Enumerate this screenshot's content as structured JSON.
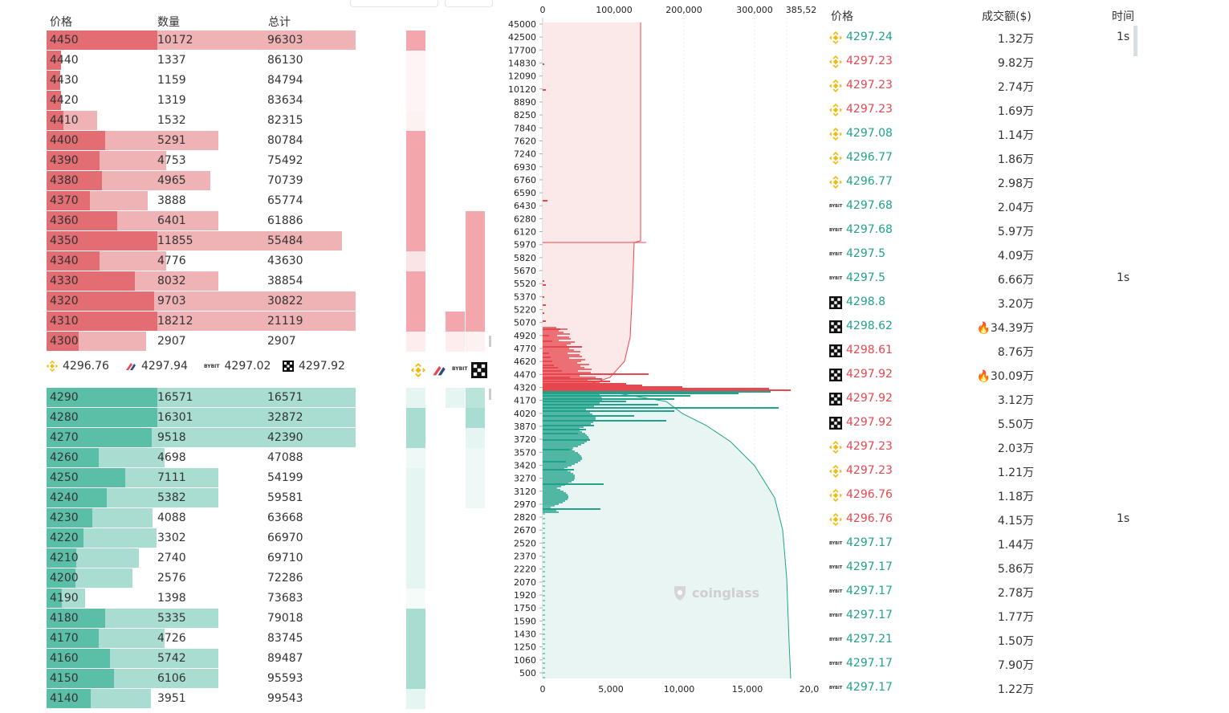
{
  "orderbook": {
    "headers": {
      "price": "价格",
      "qty": "数量",
      "total": "总计"
    },
    "asks": [
      {
        "price": "4450",
        "qty": "10172",
        "total": "96303",
        "f1": 1.0,
        "f2": 1.0
      },
      {
        "price": "4440",
        "qty": "1337",
        "total": "86130",
        "f1": 0.13,
        "f2": 0.0
      },
      {
        "price": "4430",
        "qty": "1159",
        "total": "84794",
        "f1": 0.12,
        "f2": 0.0
      },
      {
        "price": "4420",
        "qty": "1319",
        "total": "83634",
        "f1": 0.13,
        "f2": 0.0
      },
      {
        "price": "4410",
        "qty": "1532",
        "total": "82315",
        "f1": 0.15,
        "f2": 0.22
      },
      {
        "price": "4400",
        "qty": "5291",
        "total": "80784",
        "f1": 0.53,
        "f2": 1.0
      },
      {
        "price": "4390",
        "qty": "4753",
        "total": "75492",
        "f1": 0.48,
        "f2": 0.56
      },
      {
        "price": "4380",
        "qty": "4965",
        "total": "70739",
        "f1": 0.5,
        "f2": 0.93
      },
      {
        "price": "4370",
        "qty": "3888",
        "total": "65774",
        "f1": 0.39,
        "f2": 0.45
      },
      {
        "price": "4360",
        "qty": "6401",
        "total": "61886",
        "f1": 0.64,
        "f2": 1.0
      },
      {
        "price": "4350",
        "qty": "11855",
        "total": "55484",
        "f1": 1.0,
        "f2": 0.93
      },
      {
        "price": "4340",
        "qty": "4776",
        "total": "43630",
        "f1": 0.48,
        "f2": 0.56
      },
      {
        "price": "4330",
        "qty": "8032",
        "total": "38854",
        "f1": 0.8,
        "f2": 1.0
      },
      {
        "price": "4320",
        "qty": "9703",
        "total": "30822",
        "f1": 0.97,
        "f2": 1.0
      },
      {
        "price": "4310",
        "qty": "18212",
        "total": "21119",
        "f1": 1.0,
        "f2": 1.0
      },
      {
        "price": "4300",
        "qty": "2907",
        "total": "2907",
        "f1": 0.29,
        "f2": 0.48
      }
    ],
    "bids": [
      {
        "price": "4290",
        "qty": "16571",
        "total": "16571",
        "f1": 1.0,
        "f2": 1.0
      },
      {
        "price": "4280",
        "qty": "16301",
        "total": "32872",
        "f1": 1.0,
        "f2": 1.0
      },
      {
        "price": "4270",
        "qty": "9518",
        "total": "42390",
        "f1": 0.95,
        "f2": 1.0
      },
      {
        "price": "4260",
        "qty": "4698",
        "total": "47088",
        "f1": 0.47,
        "f2": 0.55
      },
      {
        "price": "4250",
        "qty": "7111",
        "total": "54199",
        "f1": 0.71,
        "f2": 1.0
      },
      {
        "price": "4240",
        "qty": "5382",
        "total": "59581",
        "f1": 0.54,
        "f2": 1.0
      },
      {
        "price": "4230",
        "qty": "4088",
        "total": "63668",
        "f1": 0.41,
        "f2": 0.48
      },
      {
        "price": "4220",
        "qty": "3302",
        "total": "66970",
        "f1": 0.33,
        "f2": 0.54
      },
      {
        "price": "4210",
        "qty": "2740",
        "total": "69710",
        "f1": 0.27,
        "f2": 0.44
      },
      {
        "price": "4200",
        "qty": "2576",
        "total": "72286",
        "f1": 0.26,
        "f2": 0.4
      },
      {
        "price": "4190",
        "qty": "1398",
        "total": "73683",
        "f1": 0.14,
        "f2": 0.15
      },
      {
        "price": "4180",
        "qty": "5335",
        "total": "79018",
        "f1": 0.53,
        "f2": 1.0
      },
      {
        "price": "4170",
        "qty": "4726",
        "total": "83745",
        "f1": 0.47,
        "f2": 0.55
      },
      {
        "price": "4160",
        "qty": "5742",
        "total": "89487",
        "f1": 0.57,
        "f2": 1.0
      },
      {
        "price": "4150",
        "qty": "6106",
        "total": "95593",
        "f1": 0.61,
        "f2": 1.0
      },
      {
        "price": "4140",
        "qty": "3951",
        "total": "99543",
        "f1": 0.4,
        "f2": 0.47
      }
    ],
    "exchange_prices": [
      {
        "icon": "binance-icon",
        "price": "4296.76"
      },
      {
        "icon": "huobi-icon",
        "price": "4297.94"
      },
      {
        "icon": "bybit-icon",
        "price": "4297.02"
      },
      {
        "icon": "okx-icon",
        "price": "4297.92"
      }
    ],
    "mini_asks_a": [
      1.0,
      0.1,
      0.05,
      0.1,
      0.15,
      1.0,
      1.0,
      1.0,
      1.0,
      1.0,
      1.0,
      0.3,
      1.0,
      1.0,
      1.0,
      0.2
    ],
    "mini_asks_b": [
      0,
      0,
      0,
      0,
      0,
      0,
      0,
      0,
      0,
      0,
      0,
      0,
      0,
      0,
      1.0,
      0.2
    ],
    "mini_asks_c": [
      0,
      0,
      0,
      0,
      0,
      0,
      0,
      0,
      0,
      1.0,
      1.0,
      1.0,
      1.0,
      1.0,
      1.0,
      0.15
    ],
    "mini_bids_a": [
      0.3,
      1.0,
      1.0,
      0.2,
      0.3,
      0.3,
      0.3,
      0.3,
      0.3,
      0.3,
      0.1,
      1.0,
      1.0,
      1.0,
      1.0,
      0.3
    ],
    "mini_bids_b": [
      0.3,
      0,
      0,
      0,
      0,
      0,
      0,
      0,
      0,
      0,
      0,
      0,
      0,
      0,
      0,
      0
    ],
    "mini_bids_c": [
      0.8,
      1.0,
      0.3,
      0.2,
      0.2,
      0.2,
      0,
      0,
      0,
      0,
      0,
      0,
      0,
      0,
      0,
      0
    ]
  },
  "depth_chart": {
    "top_axis": [
      "0",
      "100,000",
      "200,000",
      "300,000",
      "385,52"
    ],
    "bottom_axis": [
      "0",
      "5,000",
      "10,000",
      "15,000",
      "20,0"
    ],
    "price_ticks": [
      "45000",
      "42500",
      "17700",
      "14830",
      "12090",
      "10120",
      "8890",
      "8250",
      "7840",
      "7620",
      "7240",
      "6930",
      "6760",
      "6590",
      "6430",
      "6280",
      "6120",
      "5970",
      "5820",
      "5670",
      "5520",
      "5370",
      "5220",
      "5070",
      "4920",
      "4770",
      "4620",
      "4470",
      "4320",
      "4170",
      "4020",
      "3870",
      "3720",
      "3570",
      "3420",
      "3270",
      "3120",
      "2970",
      "2820",
      "2670",
      "2520",
      "2370",
      "2220",
      "2070",
      "1920",
      "1750",
      "1590",
      "1430",
      "1250",
      "1060",
      "500"
    ],
    "watermark": "coinglass",
    "ask_color": "#e8474f",
    "bid_color": "#21a28a"
  },
  "trades": {
    "headers": {
      "price": "价格",
      "amount": "成交额($)",
      "time": "时间"
    },
    "rows": [
      {
        "ex": "binance-icon",
        "price": "4297.24",
        "side": "up",
        "amount": "1.32万",
        "time": "1s",
        "fire": false
      },
      {
        "ex": "binance-icon",
        "price": "4297.23",
        "side": "down",
        "amount": "9.82万",
        "time": "",
        "fire": false
      },
      {
        "ex": "binance-icon",
        "price": "4297.23",
        "side": "down",
        "amount": "2.74万",
        "time": "",
        "fire": false
      },
      {
        "ex": "binance-icon",
        "price": "4297.23",
        "side": "down",
        "amount": "1.69万",
        "time": "",
        "fire": false
      },
      {
        "ex": "binance-icon",
        "price": "4297.08",
        "side": "up",
        "amount": "1.14万",
        "time": "",
        "fire": false
      },
      {
        "ex": "binance-icon",
        "price": "4296.77",
        "side": "up",
        "amount": "1.86万",
        "time": "",
        "fire": false
      },
      {
        "ex": "binance-icon",
        "price": "4296.77",
        "side": "up",
        "amount": "2.98万",
        "time": "",
        "fire": false
      },
      {
        "ex": "bybit-icon",
        "price": "4297.68",
        "side": "up",
        "amount": "2.04万",
        "time": "",
        "fire": false
      },
      {
        "ex": "bybit-icon",
        "price": "4297.68",
        "side": "up",
        "amount": "5.97万",
        "time": "",
        "fire": false
      },
      {
        "ex": "bybit-icon",
        "price": "4297.5",
        "side": "up",
        "amount": "4.09万",
        "time": "",
        "fire": false
      },
      {
        "ex": "bybit-icon",
        "price": "4297.5",
        "side": "up",
        "amount": "6.66万",
        "time": "1s",
        "fire": false
      },
      {
        "ex": "okx-icon",
        "price": "4298.8",
        "side": "up",
        "amount": "3.20万",
        "time": "",
        "fire": false
      },
      {
        "ex": "okx-icon",
        "price": "4298.62",
        "side": "up",
        "amount": "34.39万",
        "time": "",
        "fire": true
      },
      {
        "ex": "okx-icon",
        "price": "4298.61",
        "side": "down",
        "amount": "8.76万",
        "time": "",
        "fire": false
      },
      {
        "ex": "okx-icon",
        "price": "4297.92",
        "side": "down",
        "amount": "30.09万",
        "time": "",
        "fire": true
      },
      {
        "ex": "okx-icon",
        "price": "4297.92",
        "side": "down",
        "amount": "3.12万",
        "time": "",
        "fire": false
      },
      {
        "ex": "okx-icon",
        "price": "4297.92",
        "side": "down",
        "amount": "5.50万",
        "time": "",
        "fire": false
      },
      {
        "ex": "binance-icon",
        "price": "4297.23",
        "side": "down",
        "amount": "2.03万",
        "time": "",
        "fire": false
      },
      {
        "ex": "binance-icon",
        "price": "4297.23",
        "side": "down",
        "amount": "1.21万",
        "time": "",
        "fire": false
      },
      {
        "ex": "binance-icon",
        "price": "4296.76",
        "side": "down",
        "amount": "1.18万",
        "time": "",
        "fire": false
      },
      {
        "ex": "binance-icon",
        "price": "4296.76",
        "side": "down",
        "amount": "4.15万",
        "time": "1s",
        "fire": false
      },
      {
        "ex": "bybit-icon",
        "price": "4297.17",
        "side": "up",
        "amount": "1.44万",
        "time": "",
        "fire": false
      },
      {
        "ex": "bybit-icon",
        "price": "4297.17",
        "side": "up",
        "amount": "5.86万",
        "time": "",
        "fire": false
      },
      {
        "ex": "bybit-icon",
        "price": "4297.17",
        "side": "up",
        "amount": "2.78万",
        "time": "",
        "fire": false
      },
      {
        "ex": "bybit-icon",
        "price": "4297.17",
        "side": "up",
        "amount": "1.77万",
        "time": "",
        "fire": false
      },
      {
        "ex": "bybit-icon",
        "price": "4297.21",
        "side": "up",
        "amount": "1.50万",
        "time": "",
        "fire": false
      },
      {
        "ex": "bybit-icon",
        "price": "4297.17",
        "side": "up",
        "amount": "7.90万",
        "time": "",
        "fire": false
      },
      {
        "ex": "bybit-icon",
        "price": "4297.17",
        "side": "up",
        "amount": "1.22万",
        "time": "",
        "fire": false
      }
    ]
  }
}
